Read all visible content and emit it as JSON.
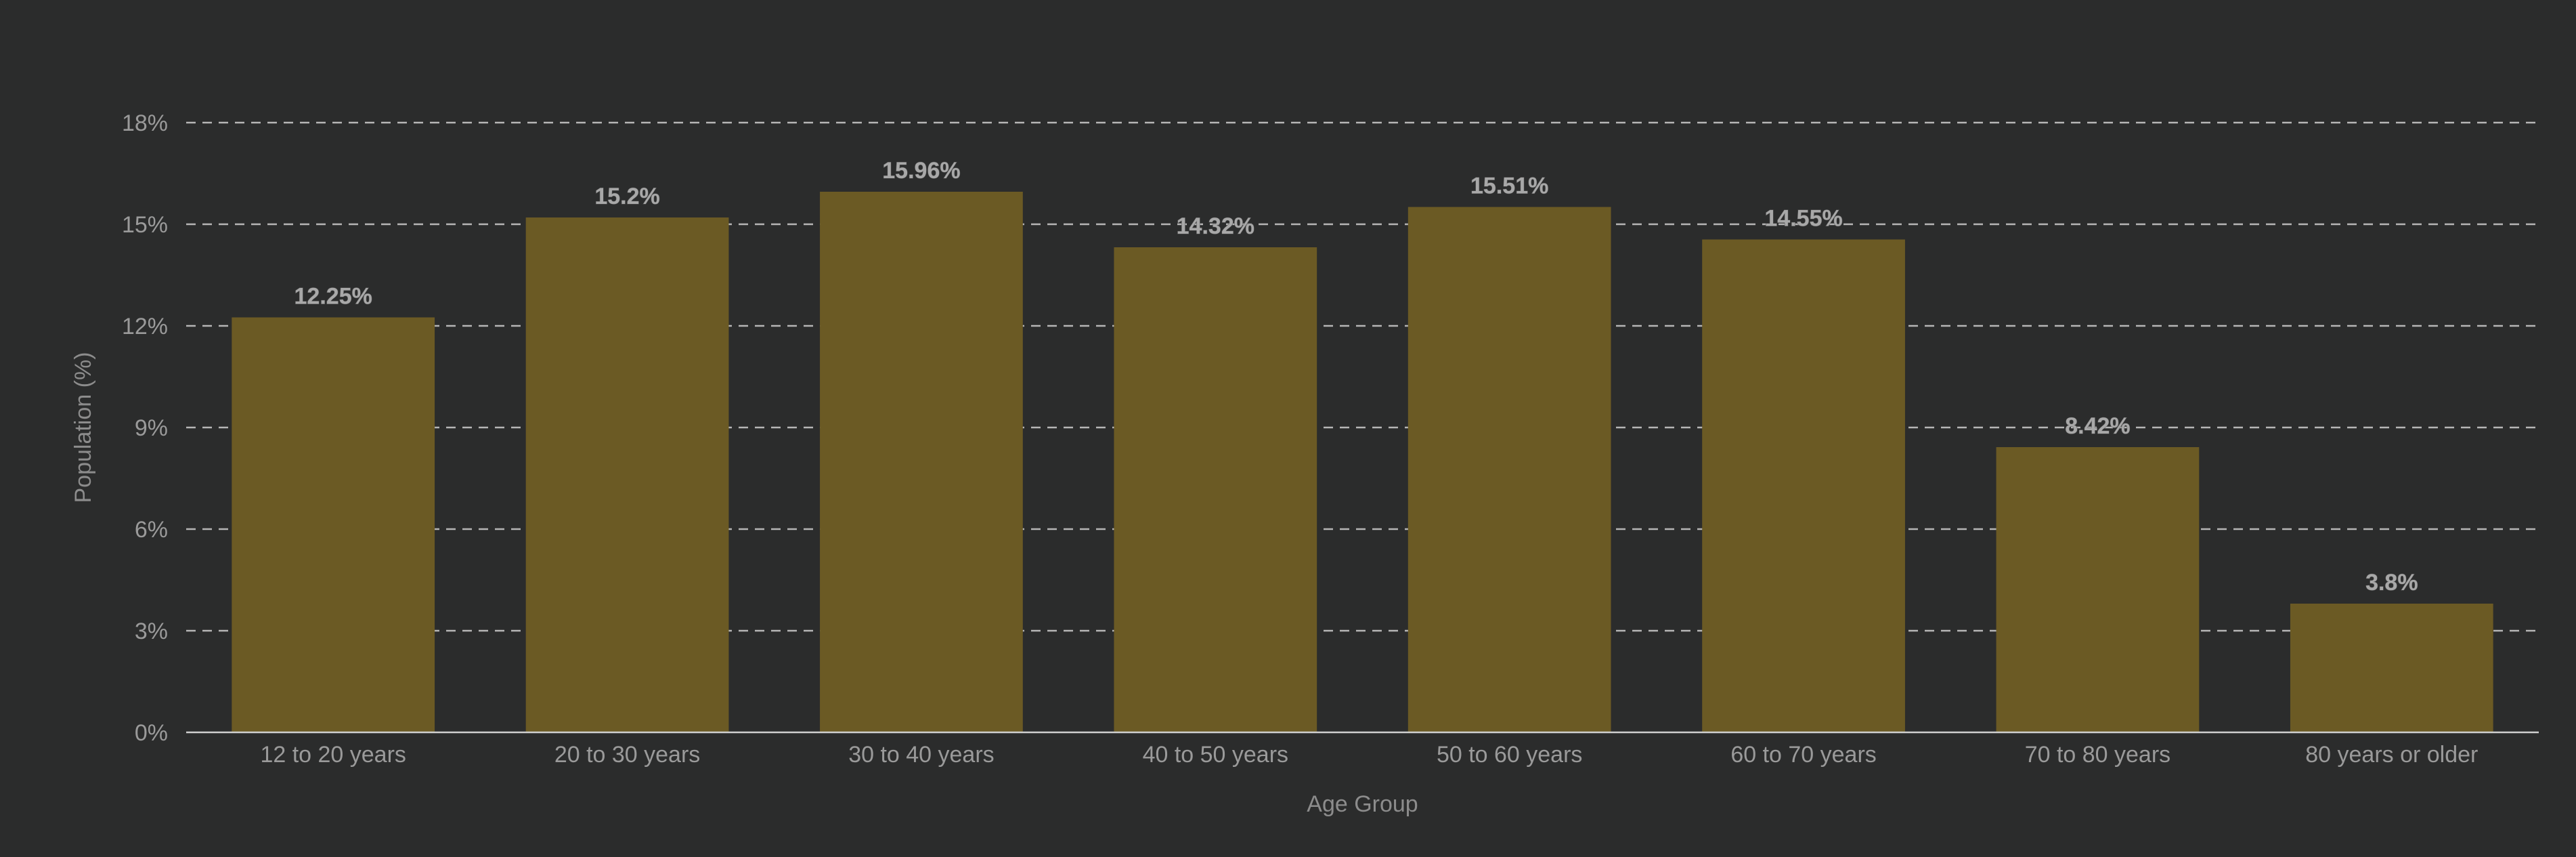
{
  "chart_data": {
    "type": "bar",
    "categories": [
      "12 to 20 years",
      "20 to 30 years",
      "30 to 40 years",
      "40 to 50 years",
      "50 to 60 years",
      "60 to 70 years",
      "70 to 80 years",
      "80 years or older"
    ],
    "values": [
      12.25,
      15.2,
      15.96,
      14.32,
      15.51,
      14.55,
      8.42,
      3.8
    ],
    "data_labels": [
      "12.25%",
      "15.2%",
      "15.96%",
      "14.32%",
      "15.51%",
      "14.55%",
      "8.42%",
      "3.8%"
    ],
    "title": "",
    "xlabel": "Age Group",
    "ylabel": "Population (%)",
    "ylim": [
      0,
      18
    ],
    "yticks": [
      0,
      3,
      6,
      9,
      12,
      15,
      18
    ],
    "ytick_labels": [
      "0%",
      "3%",
      "6%",
      "9%",
      "12%",
      "15%",
      "18%"
    ],
    "grid": "horizontal dashed",
    "legend": "none",
    "colors": {
      "background": "#2b2c2c",
      "bar": "#6b5a24",
      "grid": "#cfcfcf",
      "axis": "#cfcfcf",
      "text": "#9a9a9a"
    }
  }
}
